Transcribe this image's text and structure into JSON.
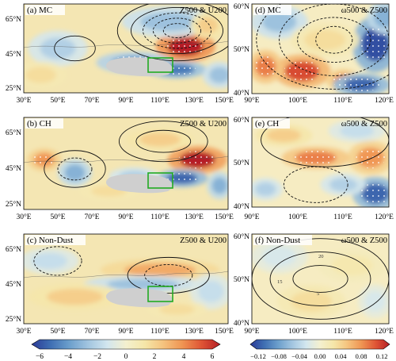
{
  "figure": {
    "panels": [
      {
        "tag": "(a) MC",
        "fields": "Z500 & U200"
      },
      {
        "tag": "(b) CH",
        "fields": "Z500 & U200"
      },
      {
        "tag": "(c) Non-Dust",
        "fields": "Z500 & U200"
      },
      {
        "tag": "(d) MC",
        "fields": "ω500 & Z500"
      },
      {
        "tag": "(e) CH",
        "fields": "ω500 & Z500"
      },
      {
        "tag": "(f) Non-Dust",
        "fields": "ω500 & Z500"
      }
    ],
    "left_lon_ticks": [
      "30°E",
      "50°E",
      "70°E",
      "90°E",
      "110°E",
      "130°E",
      "150°E"
    ],
    "left_lat_ticks": [
      "65°N",
      "45°N",
      "25°N"
    ],
    "right_lon_ticks": [
      "90°E",
      "100°E",
      "110°E",
      "120°E"
    ],
    "right_lat_ticks": [
      "60°N",
      "50°N",
      "40°N"
    ],
    "left_colorbar_labels": [
      "−6",
      "−4",
      "−2",
      "0",
      "2",
      "4",
      "6"
    ],
    "right_colorbar_labels": [
      "−0.12",
      "−0.08",
      "−0.04",
      "0.00",
      "0.04",
      "0.08",
      "0.12"
    ],
    "contour_labels_f": [
      "20",
      "5",
      "15"
    ]
  },
  "chart_data": [
    {
      "type": "heatmap",
      "panel": "a",
      "title": "(a) MC",
      "subtitle": "Z500 & U200",
      "xlim": [
        30,
        150
      ],
      "ylim": [
        20,
        70
      ],
      "colorbar": {
        "min": -6,
        "max": 6,
        "step": 1
      },
      "color_variable": "U200 anomaly",
      "contour_variable": "Z500",
      "box": {
        "lon": [
          105,
          120
        ],
        "lat": [
          35,
          42
        ]
      },
      "blobs": [
        {
          "lon": 125,
          "lat": 46,
          "value": 6.5,
          "rx": 14,
          "ry": 7
        },
        {
          "lon": 115,
          "lat": 60,
          "value": -2.5,
          "rx": 22,
          "ry": 7
        },
        {
          "lon": 95,
          "lat": 37,
          "value": -3.5,
          "rx": 18,
          "ry": 5
        },
        {
          "lon": 120,
          "lat": 33,
          "value": -4.5,
          "rx": 14,
          "ry": 4
        },
        {
          "lon": 50,
          "lat": 45,
          "value": -2.0,
          "rx": 14,
          "ry": 8
        },
        {
          "lon": 40,
          "lat": 30,
          "value": 1.5,
          "rx": 12,
          "ry": 6
        },
        {
          "lon": 145,
          "lat": 30,
          "value": -2.5,
          "rx": 8,
          "ry": 6
        },
        {
          "lon": 138,
          "lat": 58,
          "value": 2.0,
          "rx": 8,
          "ry": 6
        }
      ],
      "contours": [
        {
          "lon": 120,
          "lat": 55,
          "levels": [
            {
              "rx": 8,
              "ry": 4,
              "dash": true
            },
            {
              "rx": 14,
              "ry": 7,
              "dash": true
            },
            {
              "rx": 20,
              "ry": 10,
              "dash": true
            },
            {
              "rx": 27,
              "ry": 13,
              "dash": false
            },
            {
              "rx": 35,
              "ry": 17,
              "dash": false
            }
          ]
        },
        {
          "lon": 60,
          "lat": 45,
          "levels": [
            {
              "rx": 12,
              "ry": 7,
              "dash": false
            }
          ]
        }
      ]
    },
    {
      "type": "heatmap",
      "panel": "b",
      "title": "(b) CH",
      "subtitle": "Z500 & U200",
      "xlim": [
        30,
        150
      ],
      "ylim": [
        20,
        70
      ],
      "colorbar": {
        "min": -6,
        "max": 6,
        "step": 1
      },
      "color_variable": "U200 anomaly",
      "contour_variable": "Z500",
      "box": {
        "lon": [
          105,
          120
        ],
        "lat": [
          35,
          42
        ]
      },
      "blobs": [
        {
          "lon": 132,
          "lat": 47,
          "value": 6.0,
          "rx": 14,
          "ry": 6
        },
        {
          "lon": 123,
          "lat": 37,
          "value": -5.0,
          "rx": 12,
          "ry": 4
        },
        {
          "lon": 60,
          "lat": 40,
          "value": -3.0,
          "rx": 8,
          "ry": 6
        },
        {
          "lon": 42,
          "lat": 47,
          "value": 3.5,
          "rx": 8,
          "ry": 5
        },
        {
          "lon": 95,
          "lat": 38,
          "value": -2.0,
          "rx": 12,
          "ry": 4
        },
        {
          "lon": 110,
          "lat": 58,
          "value": 2.0,
          "rx": 16,
          "ry": 5
        },
        {
          "lon": 80,
          "lat": 30,
          "value": 1.5,
          "rx": 14,
          "ry": 4
        },
        {
          "lon": 145,
          "lat": 33,
          "value": -3.0,
          "rx": 6,
          "ry": 6
        }
      ],
      "contours": [
        {
          "lon": 60,
          "lat": 42,
          "levels": [
            {
              "rx": 10,
              "ry": 6,
              "dash": true
            },
            {
              "rx": 18,
              "ry": 10,
              "dash": false
            }
          ]
        },
        {
          "lon": 112,
          "lat": 57,
          "levels": [
            {
              "rx": 16,
              "ry": 6,
              "dash": false
            },
            {
              "rx": 26,
              "ry": 11,
              "dash": false
            }
          ]
        }
      ]
    },
    {
      "type": "heatmap",
      "panel": "c",
      "title": "(c) Non-Dust",
      "subtitle": "Z500 & U200",
      "xlim": [
        30,
        150
      ],
      "ylim": [
        20,
        70
      ],
      "colorbar": {
        "min": -6,
        "max": 6,
        "step": 1
      },
      "color_variable": "U200 anomaly",
      "contour_variable": "Z500",
      "box": {
        "lon": [
          105,
          120
        ],
        "lat": [
          35,
          42
        ]
      },
      "blobs": [
        {
          "lon": 110,
          "lat": 50,
          "value": 3.0,
          "rx": 28,
          "ry": 5
        },
        {
          "lon": 100,
          "lat": 42,
          "value": -2.5,
          "rx": 28,
          "ry": 4
        },
        {
          "lon": 60,
          "lat": 35,
          "value": 2.0,
          "rx": 22,
          "ry": 6
        },
        {
          "lon": 140,
          "lat": 38,
          "value": -1.5,
          "rx": 10,
          "ry": 8
        },
        {
          "lon": 45,
          "lat": 55,
          "value": -1.5,
          "rx": 14,
          "ry": 6
        },
        {
          "lon": 120,
          "lat": 28,
          "value": 1.5,
          "rx": 14,
          "ry": 4
        }
      ],
      "contours": [
        {
          "lon": 115,
          "lat": 47,
          "levels": [
            {
              "rx": 14,
              "ry": 6,
              "dash": true
            },
            {
              "rx": 24,
              "ry": 10,
              "dash": false
            }
          ]
        },
        {
          "lon": 50,
          "lat": 55,
          "levels": [
            {
              "rx": 14,
              "ry": 8,
              "dash": true
            }
          ]
        }
      ]
    },
    {
      "type": "heatmap",
      "panel": "d",
      "title": "(d) MC",
      "subtitle": "ω500 & Z500",
      "xlim": [
        90,
        120
      ],
      "ylim": [
        40,
        60
      ],
      "colorbar": {
        "min": -0.12,
        "max": 0.12,
        "step": 0.02
      },
      "color_variable": "ω500 anomaly",
      "contour_variable": "Z500",
      "blobs": [
        {
          "lon": 101,
          "lat": 45,
          "value": 0.1,
          "rx": 5,
          "ry": 3
        },
        {
          "lon": 93,
          "lat": 46,
          "value": 0.08,
          "rx": 3,
          "ry": 3
        },
        {
          "lon": 110,
          "lat": 43,
          "value": 0.07,
          "rx": 3,
          "ry": 2
        },
        {
          "lon": 117,
          "lat": 51,
          "value": -0.11,
          "rx": 4,
          "ry": 5
        },
        {
          "lon": 114,
          "lat": 42,
          "value": -0.1,
          "rx": 5,
          "ry": 2
        },
        {
          "lon": 96,
          "lat": 56,
          "value": -0.05,
          "rx": 5,
          "ry": 3
        },
        {
          "lon": 106,
          "lat": 52,
          "value": 0.03,
          "rx": 6,
          "ry": 3
        },
        {
          "lon": 119,
          "lat": 57,
          "value": -0.06,
          "rx": 3,
          "ry": 3
        }
      ],
      "contours": [
        {
          "lon": 108,
          "lat": 52,
          "levels": [
            {
              "rx": 4,
              "ry": 3,
              "dash": true
            },
            {
              "rx": 8,
              "ry": 5,
              "dash": true
            },
            {
              "rx": 12,
              "ry": 8,
              "dash": true
            },
            {
              "rx": 17,
              "ry": 11,
              "dash": true
            }
          ]
        }
      ]
    },
    {
      "type": "heatmap",
      "panel": "e",
      "title": "(e) CH",
      "subtitle": "ω500 & Z500",
      "xlim": [
        90,
        120
      ],
      "ylim": [
        40,
        60
      ],
      "colorbar": {
        "min": -0.12,
        "max": 0.12,
        "step": 0.02
      },
      "color_variable": "ω500 anomaly",
      "contour_variable": "Z500",
      "blobs": [
        {
          "lon": 104,
          "lat": 51,
          "value": 0.08,
          "rx": 6,
          "ry": 2
        },
        {
          "lon": 116,
          "lat": 51,
          "value": 0.07,
          "rx": 4,
          "ry": 3
        },
        {
          "lon": 117,
          "lat": 43,
          "value": -0.1,
          "rx": 4,
          "ry": 3
        },
        {
          "lon": 97,
          "lat": 56,
          "value": 0.04,
          "rx": 5,
          "ry": 2
        },
        {
          "lon": 110,
          "lat": 45,
          "value": -0.04,
          "rx": 4,
          "ry": 2
        },
        {
          "lon": 93,
          "lat": 44,
          "value": -0.04,
          "rx": 3,
          "ry": 2
        },
        {
          "lon": 113,
          "lat": 57,
          "value": -0.03,
          "rx": 5,
          "ry": 2
        }
      ],
      "contours": [
        {
          "lon": 104,
          "lat": 45,
          "levels": [
            {
              "rx": 7,
              "ry": 4,
              "dash": true
            }
          ]
        },
        {
          "lon": 106,
          "lat": 55,
          "levels": [
            {
              "rx": 14,
              "ry": 6,
              "dash": false
            }
          ]
        }
      ]
    },
    {
      "type": "heatmap",
      "panel": "f",
      "title": "(f) Non-Dust",
      "subtitle": "ω500 & Z500",
      "xlim": [
        90,
        120
      ],
      "ylim": [
        40,
        60
      ],
      "colorbar": {
        "min": -0.12,
        "max": 0.12,
        "step": 0.02
      },
      "color_variable": "ω500 anomaly",
      "contour_variable": "Z500",
      "blobs": [
        {
          "lon": 103,
          "lat": 45,
          "value": 0.03,
          "rx": 6,
          "ry": 3
        },
        {
          "lon": 112,
          "lat": 53,
          "value": 0.02,
          "rx": 6,
          "ry": 3
        },
        {
          "lon": 96,
          "lat": 55,
          "value": -0.02,
          "rx": 5,
          "ry": 3
        },
        {
          "lon": 117,
          "lat": 45,
          "value": -0.02,
          "rx": 3,
          "ry": 3
        }
      ],
      "contours": [
        {
          "lon": 105,
          "lat": 50,
          "levels": [
            {
              "rx": 6,
              "ry": 3,
              "dash": false
            },
            {
              "rx": 11,
              "ry": 6,
              "dash": false
            },
            {
              "rx": 15,
              "ry": 9,
              "dash": false
            }
          ]
        }
      ]
    }
  ]
}
